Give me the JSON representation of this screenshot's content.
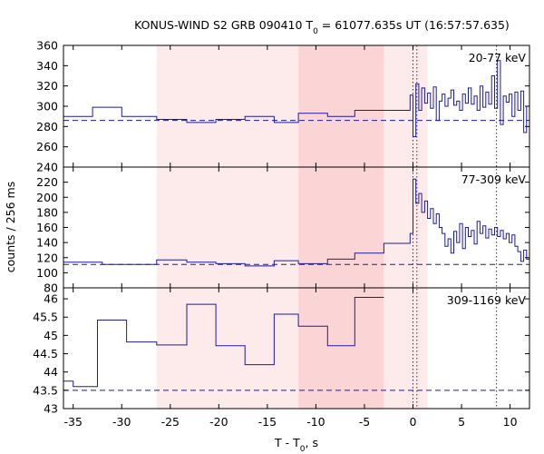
{
  "chart_data": {
    "type": "line",
    "title_parts": {
      "prefix": "KONUS-WIND S2 GRB 090410 T",
      "sub": "0",
      "suffix": " = 61077.635s UT (16:57:57.635)"
    },
    "xlabel_parts": {
      "prefix": "T - T",
      "sub": "0",
      "suffix": ", s"
    },
    "ylabel": "counts / 256 ms",
    "xlim": [
      -36,
      12
    ],
    "x_ticks": [
      -35,
      -30,
      -25,
      -20,
      -15,
      -10,
      -5,
      0,
      5,
      10
    ],
    "x_tick_labels": [
      "-35",
      "-30",
      "-25",
      "-20",
      "-15",
      "-10",
      "-5",
      "0",
      "5",
      "10"
    ],
    "shaded_regions": [
      {
        "x0": -26.4,
        "x1": 1.5,
        "color": "#fdeaea"
      },
      {
        "x0": -11.8,
        "x1": -3.0,
        "color": "#fbd5d5"
      }
    ],
    "vlines": [
      0.0,
      0.4,
      8.6
    ],
    "panels": [
      {
        "label": "20-77 keV",
        "ylim": [
          240,
          360
        ],
        "y_ticks": [
          240,
          260,
          280,
          300,
          320,
          340,
          360
        ],
        "y_tick_labels": [
          "240",
          "260",
          "280",
          "300",
          "320",
          "340",
          "360"
        ],
        "background": 286,
        "series": [
          {
            "x": [
              -36,
              -33.0
            ],
            "y": 290
          },
          {
            "x": [
              -33.0,
              -30.0
            ],
            "y": 299
          },
          {
            "x": [
              -30.0,
              -26.4
            ],
            "y": 290
          },
          {
            "x": [
              -26.4,
              -23.3
            ],
            "y": 287
          },
          {
            "x": [
              -23.3,
              -20.3
            ],
            "y": 284
          },
          {
            "x": [
              -20.3,
              -17.3
            ],
            "y": 287
          },
          {
            "x": [
              -17.3,
              -14.3
            ],
            "y": 290
          },
          {
            "x": [
              -14.3,
              -11.8
            ],
            "y": 284
          },
          {
            "x": [
              -11.8,
              -8.8
            ],
            "y": 293
          },
          {
            "x": [
              -8.8,
              -6.0
            ],
            "y": 290
          },
          {
            "x": [
              -6.0,
              -3.0
            ],
            "y": 296
          },
          {
            "x": [
              -3.0,
              -0.3
            ],
            "y": 296
          },
          {
            "x": [
              -0.3,
              0.0
            ],
            "y": 311
          },
          {
            "x": [
              0.0,
              0.3
            ],
            "y": 270
          },
          {
            "x": [
              0.3,
              0.6
            ],
            "y": 322
          },
          {
            "x": [
              0.6,
              0.9
            ],
            "y": 296
          },
          {
            "x": [
              0.9,
              1.2
            ],
            "y": 318
          },
          {
            "x": [
              1.2,
              1.5
            ],
            "y": 303
          },
          {
            "x": [
              1.5,
              1.8
            ],
            "y": 313
          },
          {
            "x": [
              1.8,
              2.1
            ],
            "y": 298
          },
          {
            "x": [
              2.1,
              2.4
            ],
            "y": 319
          },
          {
            "x": [
              2.4,
              2.7
            ],
            "y": 286
          },
          {
            "x": [
              2.7,
              3.0
            ],
            "y": 305
          },
          {
            "x": [
              3.0,
              3.3
            ],
            "y": 312
          },
          {
            "x": [
              3.3,
              3.6
            ],
            "y": 300
          },
          {
            "x": [
              3.6,
              3.9
            ],
            "y": 308
          },
          {
            "x": [
              3.9,
              4.2
            ],
            "y": 316
          },
          {
            "x": [
              4.2,
              4.5
            ],
            "y": 301
          },
          {
            "x": [
              4.5,
              4.8
            ],
            "y": 305
          },
          {
            "x": [
              4.8,
              5.1
            ],
            "y": 296
          },
          {
            "x": [
              5.1,
              5.4
            ],
            "y": 312
          },
          {
            "x": [
              5.4,
              5.7
            ],
            "y": 303
          },
          {
            "x": [
              5.7,
              6.0
            ],
            "y": 318
          },
          {
            "x": [
              6.0,
              6.3
            ],
            "y": 302
          },
          {
            "x": [
              6.3,
              6.6
            ],
            "y": 310
          },
          {
            "x": [
              6.6,
              6.9
            ],
            "y": 296
          },
          {
            "x": [
              6.9,
              7.2
            ],
            "y": 320
          },
          {
            "x": [
              7.2,
              7.5
            ],
            "y": 299
          },
          {
            "x": [
              7.5,
              7.8
            ],
            "y": 314
          },
          {
            "x": [
              7.8,
              8.1
            ],
            "y": 302
          },
          {
            "x": [
              8.1,
              8.4
            ],
            "y": 330
          },
          {
            "x": [
              8.4,
              8.7
            ],
            "y": 298
          },
          {
            "x": [
              8.7,
              9.0
            ],
            "y": 345
          },
          {
            "x": [
              9.0,
              9.3
            ],
            "y": 282
          },
          {
            "x": [
              9.3,
              9.6
            ],
            "y": 310
          },
          {
            "x": [
              9.6,
              9.9
            ],
            "y": 304
          },
          {
            "x": [
              9.9,
              10.2
            ],
            "y": 312
          },
          {
            "x": [
              10.2,
              10.5
            ],
            "y": 290
          },
          {
            "x": [
              10.5,
              10.8
            ],
            "y": 314
          },
          {
            "x": [
              10.8,
              11.1
            ],
            "y": 296
          },
          {
            "x": [
              11.1,
              11.4
            ],
            "y": 315
          },
          {
            "x": [
              11.4,
              11.7
            ],
            "y": 274
          },
          {
            "x": [
              11.7,
              12.0
            ],
            "y": 300
          }
        ]
      },
      {
        "label": "77-309 keV",
        "ylim": [
          80,
          240
        ],
        "y_ticks": [
          80,
          100,
          120,
          140,
          160,
          180,
          200,
          220
        ],
        "y_tick_labels": [
          "80",
          "100",
          "120",
          "140",
          "160",
          "180",
          "200",
          "220"
        ],
        "background": 111,
        "series": [
          {
            "x": [
              -36,
              -32.0
            ],
            "y": 114
          },
          {
            "x": [
              -32.0,
              -26.4
            ],
            "y": 111
          },
          {
            "x": [
              -26.4,
              -23.3
            ],
            "y": 117
          },
          {
            "x": [
              -23.3,
              -20.3
            ],
            "y": 114
          },
          {
            "x": [
              -20.3,
              -17.3
            ],
            "y": 112
          },
          {
            "x": [
              -17.3,
              -14.3
            ],
            "y": 109
          },
          {
            "x": [
              -14.3,
              -11.8
            ],
            "y": 116
          },
          {
            "x": [
              -11.8,
              -8.8
            ],
            "y": 112
          },
          {
            "x": [
              -8.8,
              -6.0
            ],
            "y": 118
          },
          {
            "x": [
              -6.0,
              -3.0
            ],
            "y": 126
          },
          {
            "x": [
              -3.0,
              -0.3
            ],
            "y": 139
          },
          {
            "x": [
              -0.3,
              0.0
            ],
            "y": 152
          },
          {
            "x": [
              0.0,
              0.3
            ],
            "y": 224
          },
          {
            "x": [
              0.3,
              0.6
            ],
            "y": 192
          },
          {
            "x": [
              0.6,
              0.9
            ],
            "y": 205
          },
          {
            "x": [
              0.9,
              1.2
            ],
            "y": 180
          },
          {
            "x": [
              1.2,
              1.5
            ],
            "y": 195
          },
          {
            "x": [
              1.5,
              1.8
            ],
            "y": 172
          },
          {
            "x": [
              1.8,
              2.1
            ],
            "y": 185
          },
          {
            "x": [
              2.1,
              2.4
            ],
            "y": 165
          },
          {
            "x": [
              2.4,
              2.7
            ],
            "y": 178
          },
          {
            "x": [
              2.7,
              3.0
            ],
            "y": 160
          },
          {
            "x": [
              3.0,
              3.3
            ],
            "y": 152
          },
          {
            "x": [
              3.3,
              3.6
            ],
            "y": 135
          },
          {
            "x": [
              3.6,
              3.9
            ],
            "y": 145
          },
          {
            "x": [
              3.9,
              4.2
            ],
            "y": 126
          },
          {
            "x": [
              4.2,
              4.5
            ],
            "y": 155
          },
          {
            "x": [
              4.5,
              4.8
            ],
            "y": 140
          },
          {
            "x": [
              4.8,
              5.1
            ],
            "y": 165
          },
          {
            "x": [
              5.1,
              5.4
            ],
            "y": 132
          },
          {
            "x": [
              5.4,
              5.7
            ],
            "y": 160
          },
          {
            "x": [
              5.7,
              6.0
            ],
            "y": 148
          },
          {
            "x": [
              6.0,
              6.3
            ],
            "y": 156
          },
          {
            "x": [
              6.3,
              6.6
            ],
            "y": 138
          },
          {
            "x": [
              6.6,
              6.9
            ],
            "y": 168
          },
          {
            "x": [
              6.9,
              7.2
            ],
            "y": 152
          },
          {
            "x": [
              7.2,
              7.5
            ],
            "y": 162
          },
          {
            "x": [
              7.5,
              7.8
            ],
            "y": 146
          },
          {
            "x": [
              7.8,
              8.1
            ],
            "y": 158
          },
          {
            "x": [
              8.1,
              8.4
            ],
            "y": 150
          },
          {
            "x": [
              8.4,
              8.7
            ],
            "y": 160
          },
          {
            "x": [
              8.7,
              9.0
            ],
            "y": 148
          },
          {
            "x": [
              9.0,
              9.3
            ],
            "y": 156
          },
          {
            "x": [
              9.3,
              9.6
            ],
            "y": 145
          },
          {
            "x": [
              9.6,
              9.9
            ],
            "y": 152
          },
          {
            "x": [
              9.9,
              10.2
            ],
            "y": 140
          },
          {
            "x": [
              10.2,
              10.5
            ],
            "y": 150
          },
          {
            "x": [
              10.5,
              10.8
            ],
            "y": 135
          },
          {
            "x": [
              10.8,
              11.1
            ],
            "y": 128
          },
          {
            "x": [
              11.1,
              11.4
            ],
            "y": 115
          },
          {
            "x": [
              11.4,
              11.7
            ],
            "y": 130
          },
          {
            "x": [
              11.7,
              12.0
            ],
            "y": 118
          }
        ]
      },
      {
        "label": "309-1169 keV",
        "ylim": [
          43,
          46.3
        ],
        "y_ticks": [
          43,
          43.5,
          44,
          44.5,
          45,
          45.5,
          46
        ],
        "y_tick_labels": [
          "43",
          "43.5",
          "44",
          "44.5",
          "45",
          "45.5",
          "46"
        ],
        "background": 43.5,
        "series": [
          {
            "x": [
              -36,
              -35.0
            ],
            "y": 43.75
          },
          {
            "x": [
              -35.0,
              -32.5
            ],
            "y": 43.6
          },
          {
            "x": [
              -32.5,
              -29.5
            ],
            "y": 45.42
          },
          {
            "x": [
              -29.5,
              -26.4
            ],
            "y": 44.82
          },
          {
            "x": [
              -26.4,
              -23.3
            ],
            "y": 44.74
          },
          {
            "x": [
              -23.3,
              -20.3
            ],
            "y": 45.85
          },
          {
            "x": [
              -20.3,
              -17.3
            ],
            "y": 44.72
          },
          {
            "x": [
              -17.3,
              -14.3
            ],
            "y": 44.2
          },
          {
            "x": [
              -14.3,
              -11.8
            ],
            "y": 45.58
          },
          {
            "x": [
              -11.8,
              -8.8
            ],
            "y": 45.25
          },
          {
            "x": [
              -8.8,
              -6.0
            ],
            "y": 44.72
          },
          {
            "x": [
              -6.0,
              -3.0
            ],
            "y": 46.04
          }
        ]
      }
    ]
  }
}
